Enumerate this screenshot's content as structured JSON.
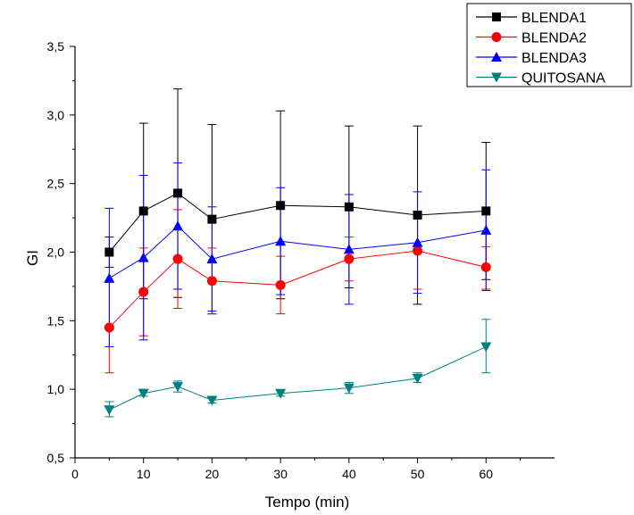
{
  "chart_data": {
    "type": "line",
    "xlabel": "Tempo (min)",
    "ylabel": "GI",
    "xlim": [
      0,
      70
    ],
    "ylim": [
      0.5,
      3.5
    ],
    "xticks": [
      0,
      10,
      20,
      30,
      40,
      50,
      60
    ],
    "yticks": [
      0.5,
      1.0,
      1.5,
      2.0,
      2.5,
      3.0,
      3.5
    ],
    "x_tick_labels": [
      "0",
      "10",
      "20",
      "30",
      "40",
      "50",
      "60"
    ],
    "y_tick_labels": [
      "0,5",
      "1,0",
      "1,5",
      "2,0",
      "2,5",
      "3,0",
      "3,5"
    ],
    "x": [
      5,
      10,
      15,
      20,
      30,
      40,
      50,
      60
    ],
    "legend_position": "top-right",
    "series": [
      {
        "name": "BLENDA1",
        "color": "#000000",
        "marker": "square",
        "values": [
          2.0,
          2.3,
          2.43,
          2.24,
          2.34,
          2.33,
          2.27,
          2.3
        ],
        "err_upper": [
          2.11,
          2.94,
          3.19,
          2.93,
          3.03,
          2.92,
          2.92,
          2.8
        ],
        "err_lower": [
          1.89,
          1.66,
          1.67,
          1.55,
          1.66,
          1.74,
          1.62,
          1.8
        ]
      },
      {
        "name": "BLENDA2",
        "color": "#ff0000",
        "marker": "circle",
        "values": [
          1.45,
          1.71,
          1.95,
          1.79,
          1.76,
          1.95,
          2.01,
          1.89
        ],
        "err_upper": [
          1.78,
          2.03,
          2.31,
          2.03,
          1.97,
          2.11,
          2.29,
          2.04
        ],
        "err_lower": [
          1.12,
          1.39,
          1.59,
          1.55,
          1.55,
          1.79,
          1.73,
          1.73
        ]
      },
      {
        "name": "BLENDA3",
        "color": "#0000ff",
        "marker": "triangle-up",
        "values": [
          1.81,
          1.96,
          2.19,
          1.95,
          2.08,
          2.02,
          2.07,
          2.16
        ],
        "err_upper": [
          2.32,
          2.56,
          2.65,
          2.33,
          2.47,
          2.42,
          2.44,
          2.6
        ],
        "err_lower": [
          1.31,
          1.36,
          1.73,
          1.57,
          1.69,
          1.62,
          1.7,
          1.72
        ]
      },
      {
        "name": "QUITOSANA",
        "color": "#008080",
        "marker": "triangle-down",
        "values": [
          0.85,
          0.97,
          1.02,
          0.92,
          0.97,
          1.01,
          1.08,
          1.31
        ],
        "err_upper": [
          0.91,
          1.0,
          1.06,
          0.94,
          0.99,
          1.05,
          1.12,
          1.51
        ],
        "err_lower": [
          0.8,
          0.95,
          0.98,
          0.9,
          0.95,
          0.97,
          1.05,
          1.12
        ]
      }
    ]
  }
}
